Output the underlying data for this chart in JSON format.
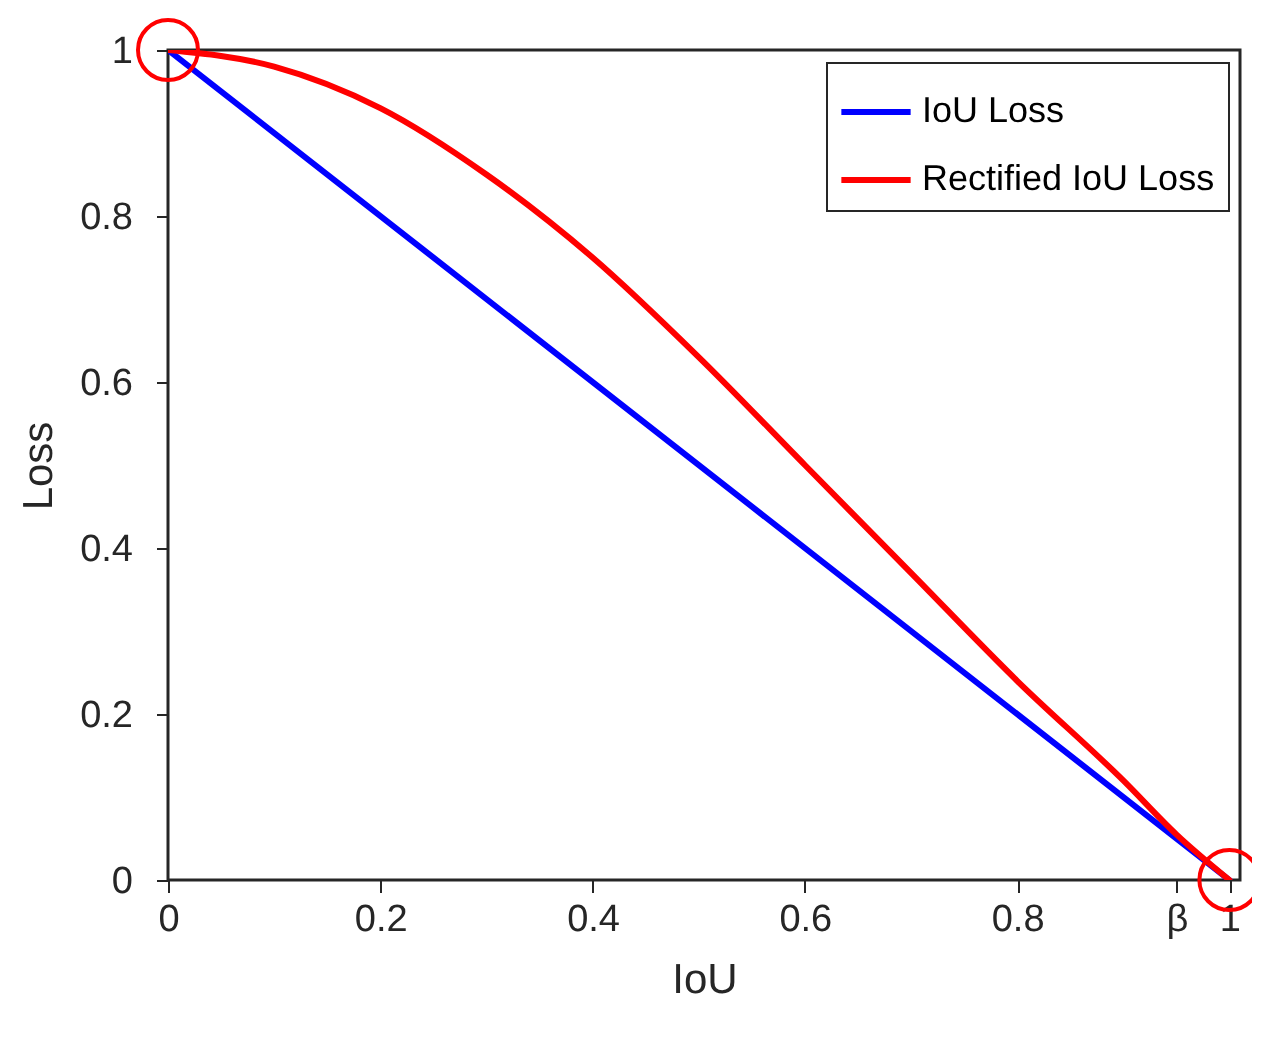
{
  "chart_data": {
    "type": "line",
    "xlabel": "IoU",
    "ylabel": "Loss",
    "xlim": [
      0,
      1.01
    ],
    "ylim": [
      0,
      1
    ],
    "xticks": [
      0,
      0.2,
      0.4,
      0.6,
      0.8,
      {
        "value": 0.95,
        "label": "β"
      },
      1
    ],
    "yticks": [
      0,
      0.2,
      0.4,
      0.6,
      0.8,
      1
    ],
    "legend": "top right",
    "grid": false,
    "series": [
      {
        "name": "IoU Loss",
        "color": "#0000ff",
        "x": [
          0,
          1
        ],
        "values": [
          1,
          0
        ]
      },
      {
        "name": "Rectified IoU Loss",
        "color": "#ff0000",
        "x": [
          0,
          0.1,
          0.2,
          0.3,
          0.4,
          0.5,
          0.6,
          0.7,
          0.8,
          0.9,
          0.95,
          1
        ],
        "values": [
          1,
          0.98,
          0.93,
          0.85,
          0.75,
          0.63,
          0.5,
          0.37,
          0.24,
          0.12,
          0.055,
          0
        ]
      }
    ]
  }
}
